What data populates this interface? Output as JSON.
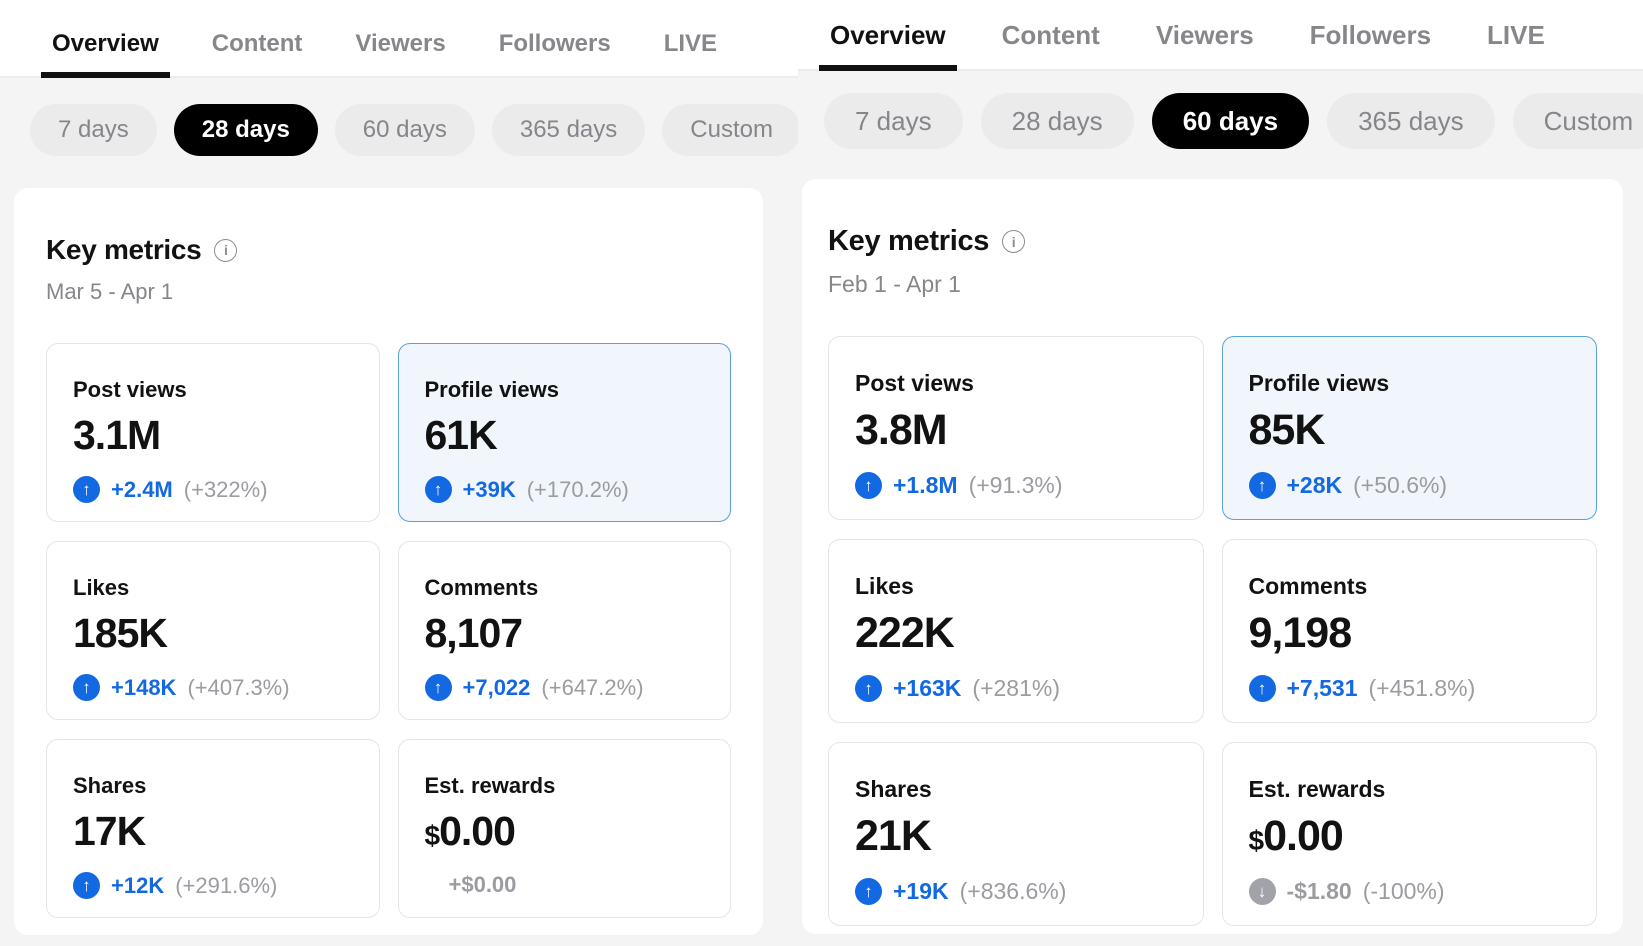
{
  "colors": {
    "accent_blue": "#1269e2",
    "positive_icon_bg": "#1269e2",
    "negative_icon_bg": "#a2a3a8",
    "selected_card_border": "#5aa1d8",
    "selected_card_bg": "#f0f6fb",
    "selected_pill_bg": "#000000",
    "muted_text": "#86878b"
  },
  "icons": {
    "up": "↑",
    "down": "↓",
    "info": "i"
  },
  "tabs": [
    "Overview",
    "Content",
    "Viewers",
    "Followers",
    "LIVE"
  ],
  "range_options": [
    "7 days",
    "28 days",
    "60 days",
    "365 days",
    "Custom"
  ],
  "panels": [
    {
      "active_tab": "Overview",
      "selected_range": "28 days",
      "key_metrics": {
        "title": "Key metrics",
        "date_range": "Mar 5 - Apr 1",
        "cards": [
          {
            "label": "Post views",
            "value_prefix": "",
            "value": "3.1M",
            "delta": "+2.4M",
            "delta_pct": "(+322%)",
            "trend": "up",
            "selected": false
          },
          {
            "label": "Profile views",
            "value_prefix": "",
            "value": "61K",
            "delta": "+39K",
            "delta_pct": "(+170.2%)",
            "trend": "up",
            "selected": true
          },
          {
            "label": "Likes",
            "value_prefix": "",
            "value": "185K",
            "delta": "+148K",
            "delta_pct": "(+407.3%)",
            "trend": "up",
            "selected": false
          },
          {
            "label": "Comments",
            "value_prefix": "",
            "value": "8,107",
            "delta": "+7,022",
            "delta_pct": "(+647.2%)",
            "trend": "up",
            "selected": false
          },
          {
            "label": "Shares",
            "value_prefix": "",
            "value": "17K",
            "delta": "+12K",
            "delta_pct": "(+291.6%)",
            "trend": "up",
            "selected": false
          },
          {
            "label": "Est. rewards",
            "value_prefix": "$",
            "value": "0.00",
            "delta": "+$0.00",
            "delta_pct": "",
            "trend": "neutral",
            "selected": false
          }
        ]
      }
    },
    {
      "active_tab": "Overview",
      "selected_range": "60 days",
      "key_metrics": {
        "title": "Key metrics",
        "date_range": "Feb 1 - Apr 1",
        "cards": [
          {
            "label": "Post views",
            "value_prefix": "",
            "value": "3.8M",
            "delta": "+1.8M",
            "delta_pct": "(+91.3%)",
            "trend": "up",
            "selected": false
          },
          {
            "label": "Profile views",
            "value_prefix": "",
            "value": "85K",
            "delta": "+28K",
            "delta_pct": "(+50.6%)",
            "trend": "up",
            "selected": true
          },
          {
            "label": "Likes",
            "value_prefix": "",
            "value": "222K",
            "delta": "+163K",
            "delta_pct": "(+281%)",
            "trend": "up",
            "selected": false
          },
          {
            "label": "Comments",
            "value_prefix": "",
            "value": "9,198",
            "delta": "+7,531",
            "delta_pct": "(+451.8%)",
            "trend": "up",
            "selected": false
          },
          {
            "label": "Shares",
            "value_prefix": "",
            "value": "21K",
            "delta": "+19K",
            "delta_pct": "(+836.6%)",
            "trend": "up",
            "selected": false
          },
          {
            "label": "Est. rewards",
            "value_prefix": "$",
            "value": "0.00",
            "delta": "-$1.80",
            "delta_pct": "(-100%)",
            "trend": "down",
            "selected": false
          }
        ]
      }
    }
  ]
}
